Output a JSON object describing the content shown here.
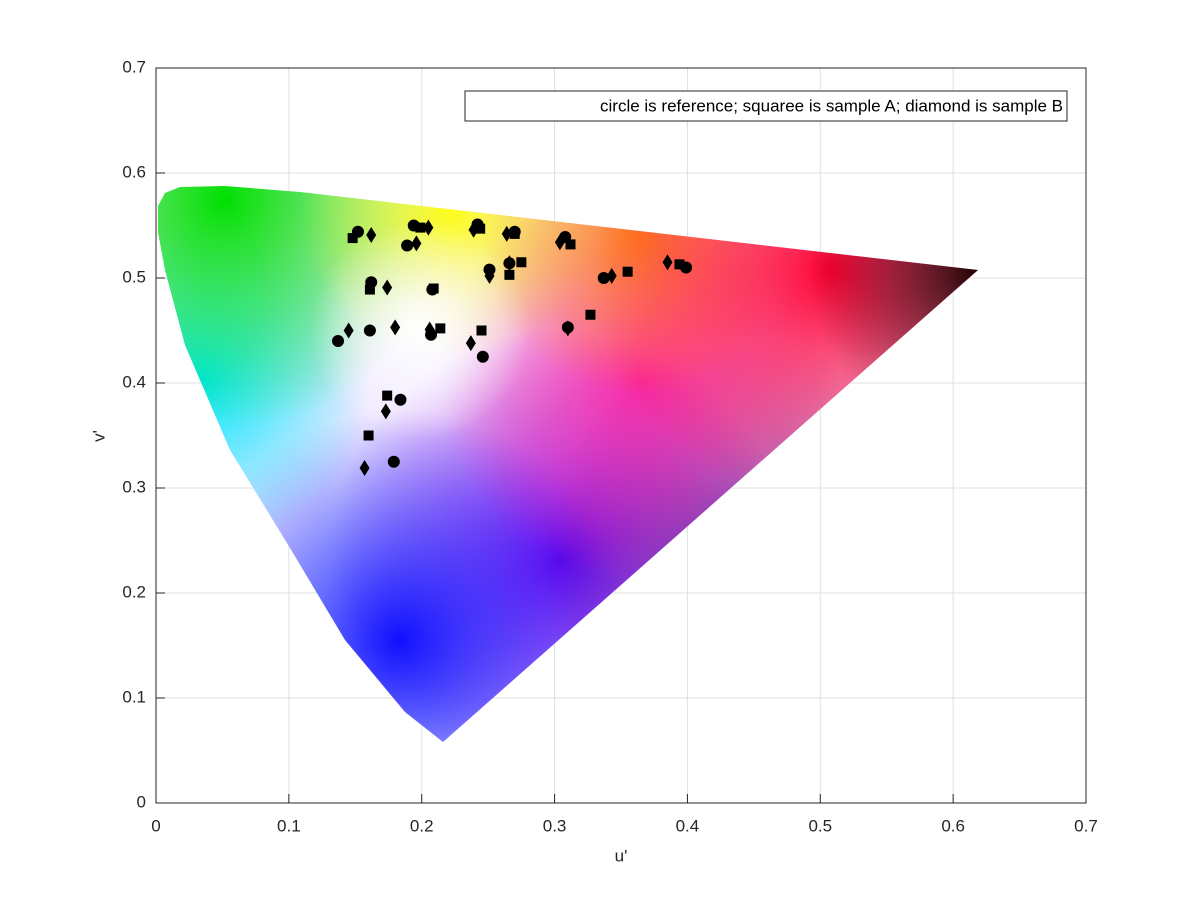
{
  "chart_data": {
    "type": "scatter",
    "xlabel": "u'",
    "ylabel": "v'",
    "legend": "circle is reference; squaree is sample A; diamond is sample B",
    "xlim": [
      0,
      0.7
    ],
    "ylim": [
      0,
      0.7
    ],
    "xticks": [
      0,
      0.1,
      0.2,
      0.3,
      0.4,
      0.5,
      0.6,
      0.7
    ],
    "yticks": [
      0,
      0.1,
      0.2,
      0.3,
      0.4,
      0.5,
      0.6,
      0.7
    ],
    "grid": true,
    "series": [
      {
        "marker": "circle",
        "color": "#000000",
        "x": [
          0.152,
          0.162,
          0.137,
          0.161,
          0.194,
          0.189,
          0.208,
          0.207,
          0.184,
          0.179,
          0.242,
          0.251,
          0.246,
          0.266,
          0.27,
          0.308,
          0.31,
          0.337,
          0.399
        ],
        "values": [
          0.544,
          0.496,
          0.44,
          0.45,
          0.55,
          0.531,
          0.489,
          0.446,
          0.384,
          0.325,
          0.551,
          0.508,
          0.425,
          0.514,
          0.544,
          0.539,
          0.453,
          0.5,
          0.51
        ]
      },
      {
        "marker": "square",
        "color": "#000000",
        "x": [
          0.148,
          0.161,
          0.174,
          0.16,
          0.199,
          0.209,
          0.214,
          0.244,
          0.245,
          0.266,
          0.27,
          0.275,
          0.312,
          0.327,
          0.355,
          0.394
        ],
        "values": [
          0.538,
          0.489,
          0.388,
          0.35,
          0.548,
          0.49,
          0.452,
          0.547,
          0.45,
          0.503,
          0.542,
          0.515,
          0.532,
          0.465,
          0.506,
          0.513
        ]
      },
      {
        "marker": "diamond",
        "color": "#000000",
        "x": [
          0.162,
          0.145,
          0.174,
          0.18,
          0.196,
          0.205,
          0.206,
          0.173,
          0.157,
          0.239,
          0.237,
          0.251,
          0.264,
          0.266,
          0.304,
          0.31,
          0.343,
          0.385
        ],
        "values": [
          0.541,
          0.45,
          0.491,
          0.453,
          0.533,
          0.548,
          0.451,
          0.373,
          0.319,
          0.546,
          0.438,
          0.502,
          0.542,
          0.514,
          0.534,
          0.452,
          0.502,
          0.515
        ]
      }
    ]
  }
}
